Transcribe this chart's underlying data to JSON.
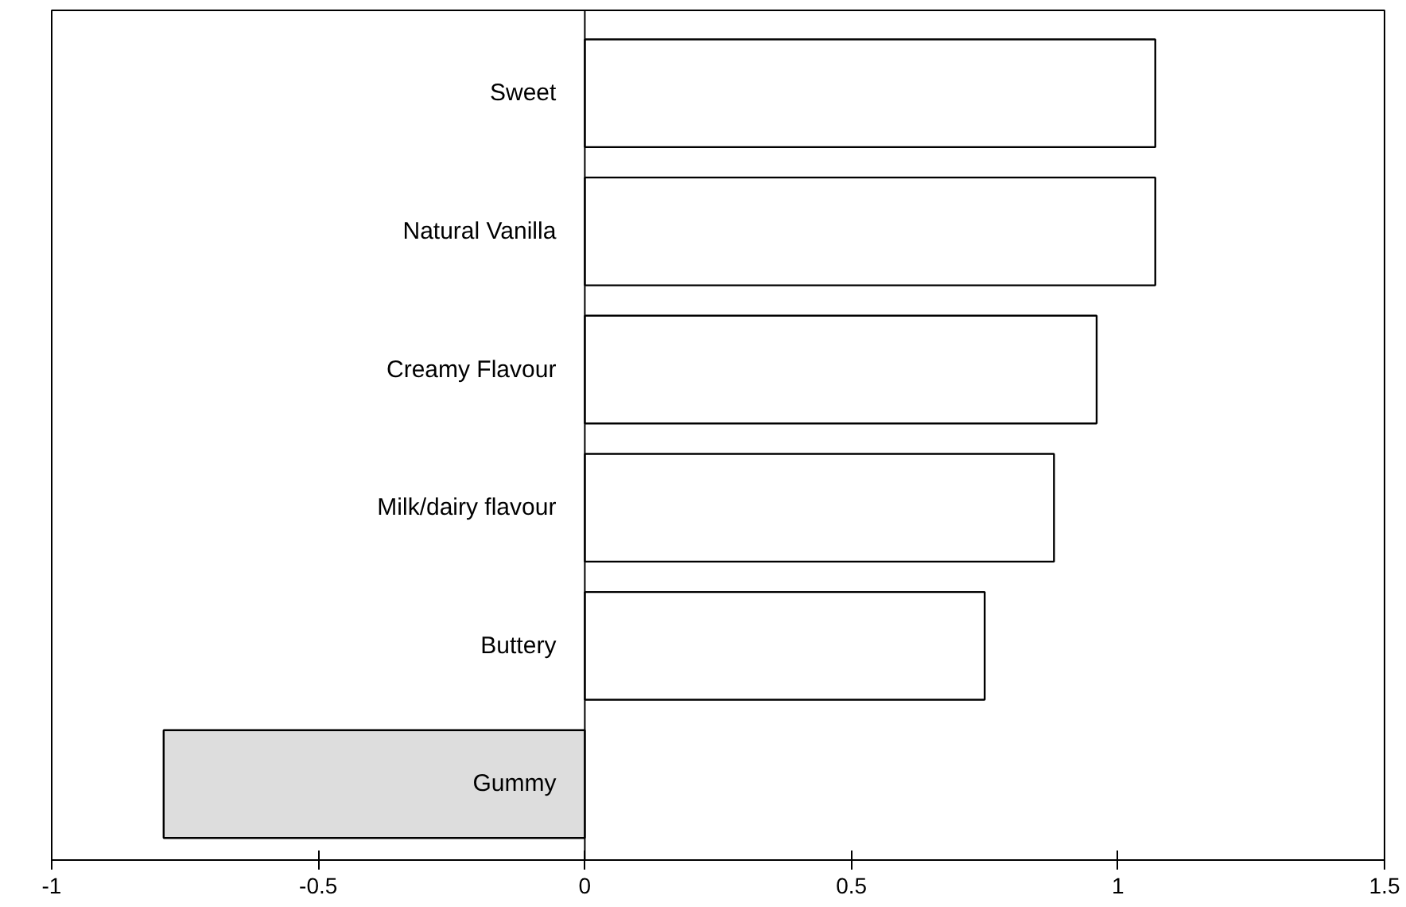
{
  "chart_data": {
    "type": "bar",
    "orientation": "horizontal",
    "categories": [
      "Sweet",
      "Natural Vanilla",
      "Creamy Flavour",
      "Milk/dairy flavour",
      "Buttery",
      "Gummy"
    ],
    "values": [
      1.07,
      1.07,
      0.96,
      0.88,
      0.75,
      -0.79
    ],
    "colors": [
      "#ffffff",
      "#ffffff",
      "#ffffff",
      "#ffffff",
      "#ffffff",
      "#dddddd"
    ],
    "xlim": [
      -1,
      1.5
    ],
    "xticks": [
      -1,
      -0.5,
      0,
      0.5,
      1,
      1.5
    ],
    "grid": false
  }
}
